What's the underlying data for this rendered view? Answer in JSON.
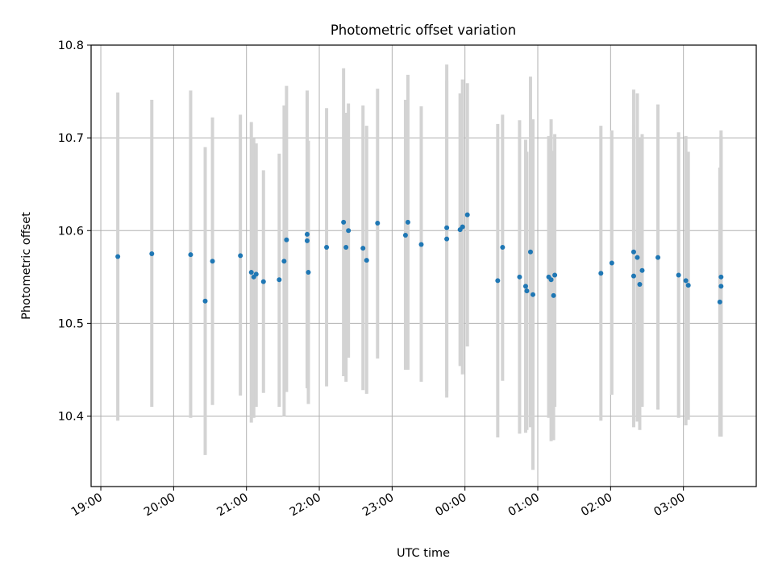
{
  "chart_data": {
    "type": "scatter",
    "title": "Photometric offset variation",
    "xlabel": "UTC time",
    "ylabel": "Photometric offset",
    "x_ticks": [
      "19:00",
      "20:00",
      "21:00",
      "22:00",
      "23:00",
      "00:00",
      "01:00",
      "02:00",
      "03:00"
    ],
    "y_ticks": [
      "10.4",
      "10.5",
      "10.6",
      "10.7",
      "10.8"
    ],
    "xlim": [
      "18:52",
      "04:00"
    ],
    "ylim": [
      10.324,
      10.8
    ],
    "grid": true,
    "colors": {
      "points": "#1f77b4",
      "error_bars": "#d3d3d3",
      "grid": "#b0b0b0"
    },
    "series": [
      {
        "points": [
          {
            "x": "19:14",
            "y": 10.572,
            "yerr_low": 10.395,
            "yerr_high": 10.749
          },
          {
            "x": "19:42",
            "y": 10.575,
            "yerr_low": 10.41,
            "yerr_high": 10.741
          },
          {
            "x": "20:14",
            "y": 10.574,
            "yerr_low": 10.398,
            "yerr_high": 10.751
          },
          {
            "x": "20:26",
            "y": 10.524,
            "yerr_low": 10.358,
            "yerr_high": 10.69
          },
          {
            "x": "20:32",
            "y": 10.567,
            "yerr_low": 10.412,
            "yerr_high": 10.722
          },
          {
            "x": "20:55",
            "y": 10.573,
            "yerr_low": 10.422,
            "yerr_high": 10.725
          },
          {
            "x": "21:04",
            "y": 10.555,
            "yerr_low": 10.393,
            "yerr_high": 10.717
          },
          {
            "x": "21:06",
            "y": 10.55,
            "yerr_low": 10.398,
            "yerr_high": 10.7
          },
          {
            "x": "21:08",
            "y": 10.553,
            "yerr_low": 10.41,
            "yerr_high": 10.694
          },
          {
            "x": "21:14",
            "y": 10.545,
            "yerr_low": 10.425,
            "yerr_high": 10.665
          },
          {
            "x": "21:27",
            "y": 10.547,
            "yerr_low": 10.41,
            "yerr_high": 10.683
          },
          {
            "x": "21:31",
            "y": 10.567,
            "yerr_low": 10.4,
            "yerr_high": 10.735
          },
          {
            "x": "21:33",
            "y": 10.59,
            "yerr_low": 10.426,
            "yerr_high": 10.756
          },
          {
            "x": "21:50",
            "y": 10.596,
            "yerr_low": 10.44,
            "yerr_high": 10.751
          },
          {
            "x": "21:50",
            "y": 10.589,
            "yerr_low": 10.43,
            "yerr_high": 10.748
          },
          {
            "x": "21:51",
            "y": 10.555,
            "yerr_low": 10.413,
            "yerr_high": 10.697
          },
          {
            "x": "22:06",
            "y": 10.582,
            "yerr_low": 10.432,
            "yerr_high": 10.732
          },
          {
            "x": "22:20",
            "y": 10.609,
            "yerr_low": 10.443,
            "yerr_high": 10.775
          },
          {
            "x": "22:22",
            "y": 10.582,
            "yerr_low": 10.437,
            "yerr_high": 10.727
          },
          {
            "x": "22:24",
            "y": 10.6,
            "yerr_low": 10.463,
            "yerr_high": 10.737
          },
          {
            "x": "22:36",
            "y": 10.581,
            "yerr_low": 10.428,
            "yerr_high": 10.735
          },
          {
            "x": "22:39",
            "y": 10.568,
            "yerr_low": 10.424,
            "yerr_high": 10.713
          },
          {
            "x": "22:48",
            "y": 10.608,
            "yerr_low": 10.462,
            "yerr_high": 10.753
          },
          {
            "x": "23:11",
            "y": 10.595,
            "yerr_low": 10.45,
            "yerr_high": 10.741
          },
          {
            "x": "23:13",
            "y": 10.609,
            "yerr_low": 10.45,
            "yerr_high": 10.768
          },
          {
            "x": "23:24",
            "y": 10.585,
            "yerr_low": 10.437,
            "yerr_high": 10.734
          },
          {
            "x": "23:45",
            "y": 10.603,
            "yerr_low": 10.427,
            "yerr_high": 10.779
          },
          {
            "x": "23:45",
            "y": 10.591,
            "yerr_low": 10.42,
            "yerr_high": 10.762
          },
          {
            "x": "23:56",
            "y": 10.601,
            "yerr_low": 10.454,
            "yerr_high": 10.748
          },
          {
            "x": "23:58",
            "y": 10.604,
            "yerr_low": 10.445,
            "yerr_high": 10.763
          },
          {
            "x": "00:02",
            "y": 10.617,
            "yerr_low": 10.475,
            "yerr_high": 10.759
          },
          {
            "x": "00:27",
            "y": 10.546,
            "yerr_low": 10.377,
            "yerr_high": 10.715
          },
          {
            "x": "00:31",
            "y": 10.582,
            "yerr_low": 10.438,
            "yerr_high": 10.725
          },
          {
            "x": "00:45",
            "y": 10.55,
            "yerr_low": 10.381,
            "yerr_high": 10.719
          },
          {
            "x": "00:50",
            "y": 10.54,
            "yerr_low": 10.382,
            "yerr_high": 10.698
          },
          {
            "x": "00:51",
            "y": 10.535,
            "yerr_low": 10.385,
            "yerr_high": 10.685
          },
          {
            "x": "00:54",
            "y": 10.577,
            "yerr_low": 10.388,
            "yerr_high": 10.766
          },
          {
            "x": "00:56",
            "y": 10.531,
            "yerr_low": 10.342,
            "yerr_high": 10.72
          },
          {
            "x": "01:09",
            "y": 10.55,
            "yerr_low": 10.398,
            "yerr_high": 10.702
          },
          {
            "x": "01:11",
            "y": 10.547,
            "yerr_low": 10.373,
            "yerr_high": 10.72
          },
          {
            "x": "01:13",
            "y": 10.53,
            "yerr_low": 10.374,
            "yerr_high": 10.686
          },
          {
            "x": "01:14",
            "y": 10.552,
            "yerr_low": 10.41,
            "yerr_high": 10.704
          },
          {
            "x": "01:52",
            "y": 10.554,
            "yerr_low": 10.395,
            "yerr_high": 10.713
          },
          {
            "x": "02:01",
            "y": 10.565,
            "yerr_low": 10.423,
            "yerr_high": 10.708
          },
          {
            "x": "02:19",
            "y": 10.577,
            "yerr_low": 10.402,
            "yerr_high": 10.752
          },
          {
            "x": "02:19",
            "y": 10.551,
            "yerr_low": 10.388,
            "yerr_high": 10.714
          },
          {
            "x": "02:22",
            "y": 10.571,
            "yerr_low": 10.394,
            "yerr_high": 10.748
          },
          {
            "x": "02:24",
            "y": 10.542,
            "yerr_low": 10.385,
            "yerr_high": 10.7
          },
          {
            "x": "02:26",
            "y": 10.557,
            "yerr_low": 10.41,
            "yerr_high": 10.704
          },
          {
            "x": "02:39",
            "y": 10.571,
            "yerr_low": 10.407,
            "yerr_high": 10.736
          },
          {
            "x": "02:56",
            "y": 10.552,
            "yerr_low": 10.398,
            "yerr_high": 10.706
          },
          {
            "x": "03:02",
            "y": 10.546,
            "yerr_low": 10.39,
            "yerr_high": 10.702
          },
          {
            "x": "03:04",
            "y": 10.541,
            "yerr_low": 10.396,
            "yerr_high": 10.685
          },
          {
            "x": "03:30",
            "y": 10.523,
            "yerr_low": 10.378,
            "yerr_high": 10.668
          },
          {
            "x": "03:31",
            "y": 10.55,
            "yerr_low": 10.378,
            "yerr_high": 10.708
          },
          {
            "x": "03:31",
            "y": 10.54,
            "yerr_low": 10.378,
            "yerr_high": 10.702
          }
        ]
      }
    ]
  }
}
